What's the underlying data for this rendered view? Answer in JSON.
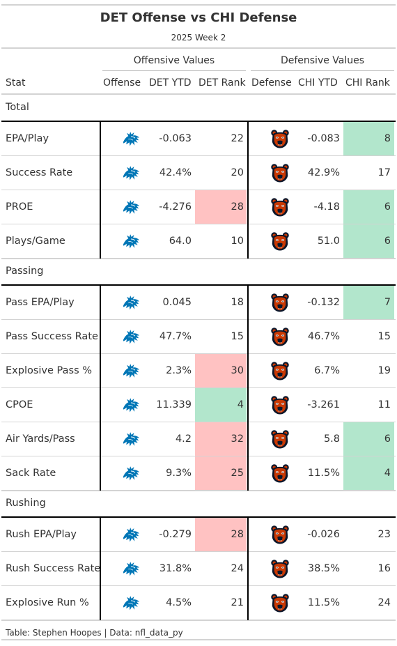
{
  "title": "DET Offense vs CHI Defense",
  "subtitle": "2025 Week 2",
  "spanners": {
    "offense": "Offensive Values",
    "defense": "Defensive Values"
  },
  "columns": {
    "stat": "Stat",
    "offense": "Offense",
    "det_ytd": "DET YTD",
    "det_rank": "DET Rank",
    "defense": "Defense",
    "chi_ytd": "CHI YTD",
    "chi_rank": "CHI Rank"
  },
  "logos": {
    "offense": "detroit-lions-logo",
    "defense": "chicago-bears-logo"
  },
  "colors": {
    "bad_rank": "#ffc2c2",
    "good_rank": "#b2e6cc",
    "lions_blue": "#0076B6",
    "bears_orange": "#C83803",
    "bears_navy": "#0B162A"
  },
  "groups": [
    {
      "label": "Total",
      "rows": [
        {
          "stat": "EPA/Play",
          "det_ytd": "-0.063",
          "det_rank": "22",
          "det_rank_color": "",
          "chi_ytd": "-0.083",
          "chi_rank": "8",
          "chi_rank_color": "green"
        },
        {
          "stat": "Success Rate",
          "det_ytd": "42.4%",
          "det_rank": "20",
          "det_rank_color": "",
          "chi_ytd": "42.9%",
          "chi_rank": "17",
          "chi_rank_color": ""
        },
        {
          "stat": "PROE",
          "det_ytd": "-4.276",
          "det_rank": "28",
          "det_rank_color": "red",
          "chi_ytd": "-4.18",
          "chi_rank": "6",
          "chi_rank_color": "green"
        },
        {
          "stat": "Plays/Game",
          "det_ytd": "64.0",
          "det_rank": "10",
          "det_rank_color": "",
          "chi_ytd": "51.0",
          "chi_rank": "6",
          "chi_rank_color": "green"
        }
      ]
    },
    {
      "label": "Passing",
      "rows": [
        {
          "stat": "Pass EPA/Play",
          "det_ytd": "0.045",
          "det_rank": "18",
          "det_rank_color": "",
          "chi_ytd": "-0.132",
          "chi_rank": "7",
          "chi_rank_color": "green"
        },
        {
          "stat": "Pass Success Rate",
          "det_ytd": "47.7%",
          "det_rank": "15",
          "det_rank_color": "",
          "chi_ytd": "46.7%",
          "chi_rank": "15",
          "chi_rank_color": ""
        },
        {
          "stat": "Explosive Pass %",
          "det_ytd": "2.3%",
          "det_rank": "30",
          "det_rank_color": "red",
          "chi_ytd": "6.7%",
          "chi_rank": "19",
          "chi_rank_color": ""
        },
        {
          "stat": "CPOE",
          "det_ytd": "11.339",
          "det_rank": "4",
          "det_rank_color": "green",
          "chi_ytd": "-3.261",
          "chi_rank": "11",
          "chi_rank_color": ""
        },
        {
          "stat": "Air Yards/Pass",
          "det_ytd": "4.2",
          "det_rank": "32",
          "det_rank_color": "red",
          "chi_ytd": "5.8",
          "chi_rank": "6",
          "chi_rank_color": "green"
        },
        {
          "stat": "Sack Rate",
          "det_ytd": "9.3%",
          "det_rank": "25",
          "det_rank_color": "red",
          "chi_ytd": "11.5%",
          "chi_rank": "4",
          "chi_rank_color": "green"
        }
      ]
    },
    {
      "label": "Rushing",
      "rows": [
        {
          "stat": "Rush EPA/Play",
          "det_ytd": "-0.279",
          "det_rank": "28",
          "det_rank_color": "red",
          "chi_ytd": "-0.026",
          "chi_rank": "23",
          "chi_rank_color": ""
        },
        {
          "stat": "Rush Success Rate",
          "det_ytd": "31.8%",
          "det_rank": "24",
          "det_rank_color": "",
          "chi_ytd": "38.5%",
          "chi_rank": "16",
          "chi_rank_color": ""
        },
        {
          "stat": "Explosive Run %",
          "det_ytd": "4.5%",
          "det_rank": "21",
          "det_rank_color": "",
          "chi_ytd": "11.5%",
          "chi_rank": "24",
          "chi_rank_color": ""
        }
      ]
    }
  ],
  "source_note": "Table: Stephen Hoopes | Data: nfl_data_py",
  "chart_data": {
    "type": "table",
    "title": "DET Offense vs CHI Defense",
    "subtitle": "2025 Week 2",
    "columns": [
      "Stat",
      "Offense",
      "DET YTD",
      "DET Rank",
      "Defense",
      "CHI YTD",
      "CHI Rank"
    ],
    "rows": [
      [
        "EPA/Play",
        "-0.063",
        22,
        "-0.083",
        8
      ],
      [
        "Success Rate",
        "42.4%",
        20,
        "42.9%",
        17
      ],
      [
        "PROE",
        "-4.276",
        28,
        "-4.18",
        6
      ],
      [
        "Plays/Game",
        "64.0",
        10,
        "51.0",
        6
      ],
      [
        "Pass EPA/Play",
        "0.045",
        18,
        "-0.132",
        7
      ],
      [
        "Pass Success Rate",
        "47.7%",
        15,
        "46.7%",
        15
      ],
      [
        "Explosive Pass %",
        "2.3%",
        30,
        "6.7%",
        19
      ],
      [
        "CPOE",
        "11.339",
        4,
        "-3.261",
        11
      ],
      [
        "Air Yards/Pass",
        "4.2",
        32,
        "5.8",
        6
      ],
      [
        "Sack Rate",
        "9.3%",
        25,
        "11.5%",
        4
      ],
      [
        "Rush EPA/Play",
        "-0.279",
        28,
        "-0.026",
        23
      ],
      [
        "Rush Success Rate",
        "31.8%",
        24,
        "38.5%",
        16
      ],
      [
        "Explosive Run %",
        "4.5%",
        21,
        "11.5%",
        24
      ]
    ]
  }
}
